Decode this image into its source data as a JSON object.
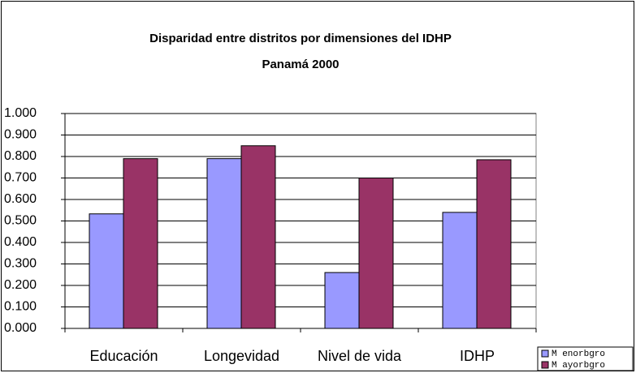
{
  "chart_data": {
    "type": "bar",
    "title": "Disparidad entre distritos por dimensiones del IDHP",
    "subtitle": "Panamá 2000",
    "categories": [
      "Educación",
      "Longevidad",
      "Nivel de vida",
      "IDHP"
    ],
    "series": [
      {
        "name": "M enorbgro",
        "color": "#9999ff",
        "values": [
          0.533,
          0.79,
          0.26,
          0.54
        ]
      },
      {
        "name": "M ayorbgro",
        "color": "#993366",
        "values": [
          0.79,
          0.85,
          0.7,
          0.785
        ]
      }
    ],
    "ylim": [
      0,
      1
    ],
    "yticks": [
      {
        "value": 0,
        "label": "0.000"
      },
      {
        "value": 0.1,
        "label": "0.100"
      },
      {
        "value": 0.2,
        "label": "0.200"
      },
      {
        "value": 0.3,
        "label": "0.300"
      },
      {
        "value": 0.4,
        "label": "0.400"
      },
      {
        "value": 0.5,
        "label": "0.500"
      },
      {
        "value": 0.6,
        "label": "0.600"
      },
      {
        "value": 0.7,
        "label": "0.700"
      },
      {
        "value": 0.8,
        "label": "0.800"
      },
      {
        "value": 0.9,
        "label": "0.900"
      },
      {
        "value": 1,
        "label": "1.000"
      }
    ],
    "grid": true
  }
}
